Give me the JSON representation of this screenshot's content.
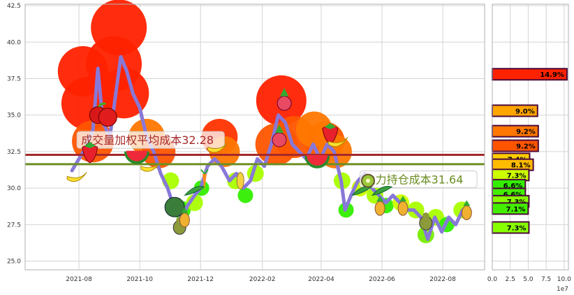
{
  "chart_data": [
    {
      "type": "line",
      "x_ticks": [
        "2021-08",
        "2021-10",
        "2021-12",
        "2022-02",
        "2022-04",
        "2022-06",
        "2022-08"
      ],
      "y_ticks": [
        "25.0",
        "27.5",
        "30.0",
        "32.5",
        "35.0",
        "37.5",
        "40.0",
        "42.5"
      ],
      "ylim": [
        24.4,
        42.6
      ],
      "xlim": [
        "2021-06-08",
        "2022-09-12"
      ],
      "grid": true,
      "series": [
        {
          "color": "#8878d8",
          "points": [
            [
              "2021-07-25",
              31.2
            ],
            [
              "2021-08-01",
              32.0
            ],
            [
              "2021-08-08",
              32.8
            ],
            [
              "2021-08-15",
              34.0
            ],
            [
              "2021-08-20",
              38.2
            ],
            [
              "2021-08-25",
              34.5
            ],
            [
              "2021-09-01",
              33.5
            ],
            [
              "2021-09-07",
              36.5
            ],
            [
              "2021-09-12",
              39.0
            ],
            [
              "2021-09-18",
              38.0
            ],
            [
              "2021-09-24",
              36.5
            ],
            [
              "2021-10-01",
              35.5
            ],
            [
              "2021-10-08",
              33.5
            ],
            [
              "2021-10-15",
              32.5
            ],
            [
              "2021-10-22",
              31.0
            ],
            [
              "2021-10-29",
              30.0
            ],
            [
              "2021-11-05",
              28.5
            ],
            [
              "2021-11-12",
              28.0
            ],
            [
              "2021-11-18",
              28.8
            ],
            [
              "2021-11-25",
              29.5
            ],
            [
              "2021-12-01",
              30.0
            ],
            [
              "2021-12-08",
              31.5
            ],
            [
              "2021-12-15",
              32.0
            ],
            [
              "2021-12-22",
              31.5
            ],
            [
              "2021-12-30",
              30.5
            ],
            [
              "2022-01-06",
              31.0
            ],
            [
              "2022-01-13",
              30.0
            ],
            [
              "2022-01-20",
              30.5
            ],
            [
              "2022-01-27",
              32.0
            ],
            [
              "2022-02-03",
              31.5
            ],
            [
              "2022-02-10",
              33.0
            ],
            [
              "2022-02-17",
              35.0
            ],
            [
              "2022-02-24",
              34.5
            ],
            [
              "2022-03-03",
              33.0
            ],
            [
              "2022-03-10",
              32.5
            ],
            [
              "2022-03-17",
              32.0
            ],
            [
              "2022-03-24",
              33.0
            ],
            [
              "2022-03-31",
              32.0
            ],
            [
              "2022-04-07",
              33.0
            ],
            [
              "2022-04-14",
              32.5
            ],
            [
              "2022-04-21",
              30.5
            ],
            [
              "2022-04-25",
              28.5
            ],
            [
              "2022-05-01",
              29.5
            ],
            [
              "2022-05-08",
              30.5
            ],
            [
              "2022-05-15",
              31.0
            ],
            [
              "2022-05-22",
              30.0
            ],
            [
              "2022-05-29",
              29.5
            ],
            [
              "2022-06-05",
              29.0
            ],
            [
              "2022-06-12",
              29.5
            ],
            [
              "2022-06-19",
              29.0
            ],
            [
              "2022-06-26",
              28.5
            ],
            [
              "2022-07-03",
              28.5
            ],
            [
              "2022-07-10",
              28.0
            ],
            [
              "2022-07-17",
              26.5
            ],
            [
              "2022-07-24",
              28.0
            ],
            [
              "2022-07-31",
              27.0
            ],
            [
              "2022-08-07",
              28.0
            ],
            [
              "2022-08-14",
              27.5
            ],
            [
              "2022-08-21",
              28.5
            ],
            [
              "2022-08-26",
              28.5
            ]
          ]
        }
      ],
      "reference_lines": [
        {
          "y": 32.28,
          "color": "#a52a2a",
          "label": "成交量加权平均成本32.28",
          "label_at": "2021-07-30"
        },
        {
          "y": 31.64,
          "color": "#6b8e23",
          "label": "主力持仓成本31.64",
          "label_at": "2022-05-10"
        }
      ],
      "bubbles": [
        {
          "x": "2021-08-10",
          "y": 35.8,
          "size": 38,
          "color": "#ff2200"
        },
        {
          "x": "2021-08-05",
          "y": 38.0,
          "size": 36,
          "color": "#ff2200"
        },
        {
          "x": "2021-09-05",
          "y": 38.5,
          "size": 40,
          "color": "#ff2200"
        },
        {
          "x": "2021-09-15",
          "y": 36.5,
          "size": 36,
          "color": "#ff2200"
        },
        {
          "x": "2021-09-10",
          "y": 41.0,
          "size": 40,
          "color": "#ff2200"
        },
        {
          "x": "2021-08-15",
          "y": 33.2,
          "size": 30,
          "color": "#ff5500"
        },
        {
          "x": "2021-10-08",
          "y": 33.5,
          "size": 26,
          "color": "#ff7700"
        },
        {
          "x": "2021-10-20",
          "y": 32.5,
          "size": 24,
          "color": "#ff5500"
        },
        {
          "x": "2021-12-20",
          "y": 33.5,
          "size": 26,
          "color": "#ff3300"
        },
        {
          "x": "2021-12-25",
          "y": 32.5,
          "size": 22,
          "color": "#ff7700"
        },
        {
          "x": "2022-02-20",
          "y": 36.0,
          "size": 36,
          "color": "#ff2200"
        },
        {
          "x": "2022-02-15",
          "y": 33.0,
          "size": 30,
          "color": "#ff5500"
        },
        {
          "x": "2022-03-05",
          "y": 33.5,
          "size": 30,
          "color": "#ff5500"
        },
        {
          "x": "2022-04-05",
          "y": 33.2,
          "size": 28,
          "color": "#ff5500"
        },
        {
          "x": "2022-04-15",
          "y": 32.5,
          "size": 24,
          "color": "#ff7700"
        },
        {
          "x": "2022-03-25",
          "y": 34.0,
          "size": 26,
          "color": "#ff7700"
        },
        {
          "x": "2021-11-01",
          "y": 30.5,
          "size": 12,
          "color": "#aaff00"
        },
        {
          "x": "2021-11-12",
          "y": 28.5,
          "size": 13,
          "color": "#33ee00"
        },
        {
          "x": "2021-11-25",
          "y": 29.0,
          "size": 12,
          "color": "#aaff00"
        },
        {
          "x": "2021-12-02",
          "y": 30.0,
          "size": 11,
          "color": "#33ee00"
        },
        {
          "x": "2022-01-05",
          "y": 30.5,
          "size": 12,
          "color": "#aaff00"
        },
        {
          "x": "2022-01-15",
          "y": 29.5,
          "size": 11,
          "color": "#33ee00"
        },
        {
          "x": "2022-01-25",
          "y": 31.0,
          "size": 12,
          "color": "#aaff00"
        },
        {
          "x": "2022-04-22",
          "y": 30.5,
          "size": 12,
          "color": "#aaff00"
        },
        {
          "x": "2022-04-26",
          "y": 28.5,
          "size": 11,
          "color": "#33ee00"
        },
        {
          "x": "2022-05-10",
          "y": 30.0,
          "size": 12,
          "color": "#ccff00"
        },
        {
          "x": "2022-05-25",
          "y": 29.5,
          "size": 12,
          "color": "#aaff00"
        },
        {
          "x": "2022-06-05",
          "y": 28.8,
          "size": 11,
          "color": "#33ee00"
        },
        {
          "x": "2022-06-20",
          "y": 29.0,
          "size": 12,
          "color": "#ccff00"
        },
        {
          "x": "2022-07-05",
          "y": 28.5,
          "size": 12,
          "color": "#aaff00"
        },
        {
          "x": "2022-07-15",
          "y": 26.8,
          "size": 12,
          "color": "#77ee00"
        },
        {
          "x": "2022-07-25",
          "y": 28.0,
          "size": 12,
          "color": "#aaff00"
        },
        {
          "x": "2022-08-05",
          "y": 27.5,
          "size": 11,
          "color": "#33ee00"
        },
        {
          "x": "2022-08-20",
          "y": 28.5,
          "size": 12,
          "color": "#aaff00"
        }
      ],
      "fruit_markers": [
        {
          "icon": "apple-icon",
          "x": "2021-08-25",
          "y": 35.0
        },
        {
          "icon": "strawberry-icon",
          "x": "2021-08-12",
          "y": 32.5
        },
        {
          "icon": "banana-icon",
          "x": "2021-07-30",
          "y": 30.8
        },
        {
          "icon": "watermelon-icon",
          "x": "2021-09-28",
          "y": 32.8
        },
        {
          "icon": "banana-icon",
          "x": "2021-10-12",
          "y": 31.5
        },
        {
          "icon": "banana-icon",
          "x": "2021-12-18",
          "y": 32.8
        },
        {
          "icon": "melon-icon",
          "x": "2021-11-05",
          "y": 28.7
        },
        {
          "icon": "pear-icon",
          "x": "2021-11-10",
          "y": 27.5
        },
        {
          "icon": "pineapple-icon",
          "x": "2021-11-15",
          "y": 28.0
        },
        {
          "icon": "pea-pod-icon",
          "x": "2021-11-25",
          "y": 29.8
        },
        {
          "icon": "carrot-icon",
          "x": "2021-12-05",
          "y": 30.5
        },
        {
          "icon": "corn-icon",
          "x": "2022-01-10",
          "y": 30.5
        },
        {
          "icon": "radish-icon",
          "x": "2022-02-23",
          "y": 36.0
        },
        {
          "icon": "radish-icon",
          "x": "2022-02-18",
          "y": 33.5
        },
        {
          "icon": "strawberry-icon",
          "x": "2022-04-10",
          "y": 33.8
        },
        {
          "icon": "watermelon-icon",
          "x": "2022-03-28",
          "y": 32.5
        },
        {
          "icon": "banana-icon",
          "x": "2022-04-18",
          "y": 33.2
        },
        {
          "icon": "pea-pod-icon",
          "x": "2022-05-12",
          "y": 29.8
        },
        {
          "icon": "kiwi-icon",
          "x": "2022-05-18",
          "y": 30.5
        },
        {
          "icon": "pineapple-icon",
          "x": "2022-05-30",
          "y": 28.8
        },
        {
          "icon": "pineapple-icon",
          "x": "2022-06-22",
          "y": 28.8
        },
        {
          "icon": "pea-pod-icon",
          "x": "2022-06-01",
          "y": 29.8
        },
        {
          "icon": "pear-icon",
          "x": "2022-07-15",
          "y": 27.8
        },
        {
          "icon": "pineapple-icon",
          "x": "2022-08-25",
          "y": 28.5
        }
      ]
    },
    {
      "type": "bar",
      "orientation": "horizontal",
      "x_ticks": [
        "0.0",
        "2.5",
        "5.0",
        "7.5",
        "10.0"
      ],
      "xlim": [
        0,
        10.6
      ],
      "x_scale_note": "1e7",
      "y_shared_with_price": true,
      "grid": true,
      "bars": [
        {
          "y": 37.8,
          "value": 10.4,
          "label": "14.9%",
          "color": "#ff2200"
        },
        {
          "y": 35.3,
          "value": 6.3,
          "label": "9.0%",
          "color": "#ffa500"
        },
        {
          "y": 33.9,
          "value": 6.4,
          "label": "9.2%",
          "color": "#ff7700"
        },
        {
          "y": 32.9,
          "value": 6.4,
          "label": "9.2%",
          "color": "#ff5500"
        },
        {
          "y": 32.0,
          "value": 5.2,
          "label": "7.4%",
          "color": "#ffcc00"
        },
        {
          "y": 31.6,
          "value": 5.7,
          "label": "8.1%",
          "color": "#ffbb00"
        },
        {
          "y": 30.9,
          "value": 5.1,
          "label": "7.3%",
          "color": "#ccff00"
        },
        {
          "y": 30.2,
          "value": 4.6,
          "label": "6.6%",
          "color": "#33ee00"
        },
        {
          "y": 29.6,
          "value": 4.6,
          "label": "6.6%",
          "color": "#44ee00"
        },
        {
          "y": 29.1,
          "value": 5.1,
          "label": "7.3%",
          "color": "#88ff00"
        },
        {
          "y": 28.6,
          "value": 5.0,
          "label": "7.1%",
          "color": "#44ee00"
        },
        {
          "y": 27.3,
          "value": 5.1,
          "label": "7.3%",
          "color": "#88ff00"
        }
      ]
    }
  ]
}
